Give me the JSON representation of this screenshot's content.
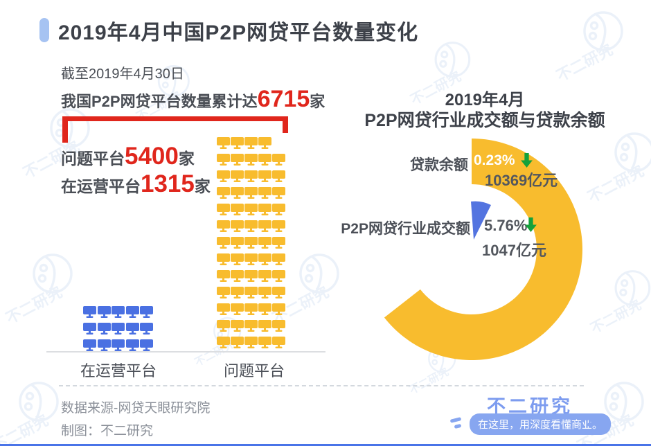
{
  "page": {
    "title": "2019年4月中国P2P网贷平台数量变化",
    "accent_color": "#a6c3f2",
    "background": "#ffffff"
  },
  "left_chart": {
    "date_note": "截至2019年4月30日",
    "total_line": {
      "prefix": "我国P2P网贷平台数量累计达",
      "value": "6715",
      "suffix": "家"
    },
    "stats": [
      {
        "label": "问题平台",
        "value": "5400",
        "suffix": "家"
      },
      {
        "label": "在运营平台",
        "value": "1315",
        "suffix": "家"
      }
    ],
    "pictogram": {
      "icon": "monitor-icon",
      "series": [
        {
          "name": "问题平台",
          "color": "#f8bc2e",
          "count": 64,
          "rows": [
            4,
            5,
            5,
            5,
            5,
            5,
            5,
            5,
            5,
            5,
            5,
            5,
            5
          ]
        },
        {
          "name": "在运营平台",
          "color": "#4a70e2",
          "count": 15,
          "rows": [
            5,
            5,
            5
          ]
        }
      ],
      "x_labels": [
        "在运营平台",
        "问题平台"
      ],
      "bracket_color": "#e0261c"
    }
  },
  "right_chart": {
    "title_line1": "2019年4月",
    "title_line2": "P2P网贷行业成交额与贷款余额",
    "slices": [
      {
        "label": "贷款余额",
        "change": "0.23%",
        "direction": "down",
        "value": "10369亿元",
        "color": "#f8bc2e"
      },
      {
        "label": "P2P网贷行业成交额",
        "change": "5.76%",
        "direction": "down",
        "value": "1047亿元",
        "color": "#5374e0"
      }
    ],
    "arrow_color": "#14a13b"
  },
  "chart_data": [
    {
      "type": "bar",
      "style": "pictogram of monitor icons",
      "title": "2019年4月中国P2P网贷平台数量变化",
      "subtitle": "截至2019年4月30日 我国P2P网贷平台数量累计达6715家",
      "categories": [
        "在运营平台",
        "问题平台"
      ],
      "values": [
        1315,
        5400
      ],
      "total": 6715,
      "unit": "家",
      "colors": [
        "#4a70e2",
        "#f8bc2e"
      ]
    },
    {
      "type": "pie",
      "style": "donut with small exploded slice",
      "title": "2019年4月 P2P网贷行业成交额与贷款余额",
      "labels": [
        "贷款余额",
        "P2P网贷行业成交额"
      ],
      "values": [
        10369,
        1047
      ],
      "unit": "亿元",
      "mom_change": [
        "-0.23%",
        "-5.76%"
      ],
      "colors": [
        "#f8bc2e",
        "#5374e0"
      ],
      "legend_position": "left of donut"
    }
  ],
  "footer": {
    "source": "数据来源-网贷天眼研究院",
    "credit": "制图：不二研究",
    "brand": "不二研究",
    "slogan": "在这里，用深度看懂商业。"
  },
  "watermark": {
    "text": "不二研究"
  }
}
